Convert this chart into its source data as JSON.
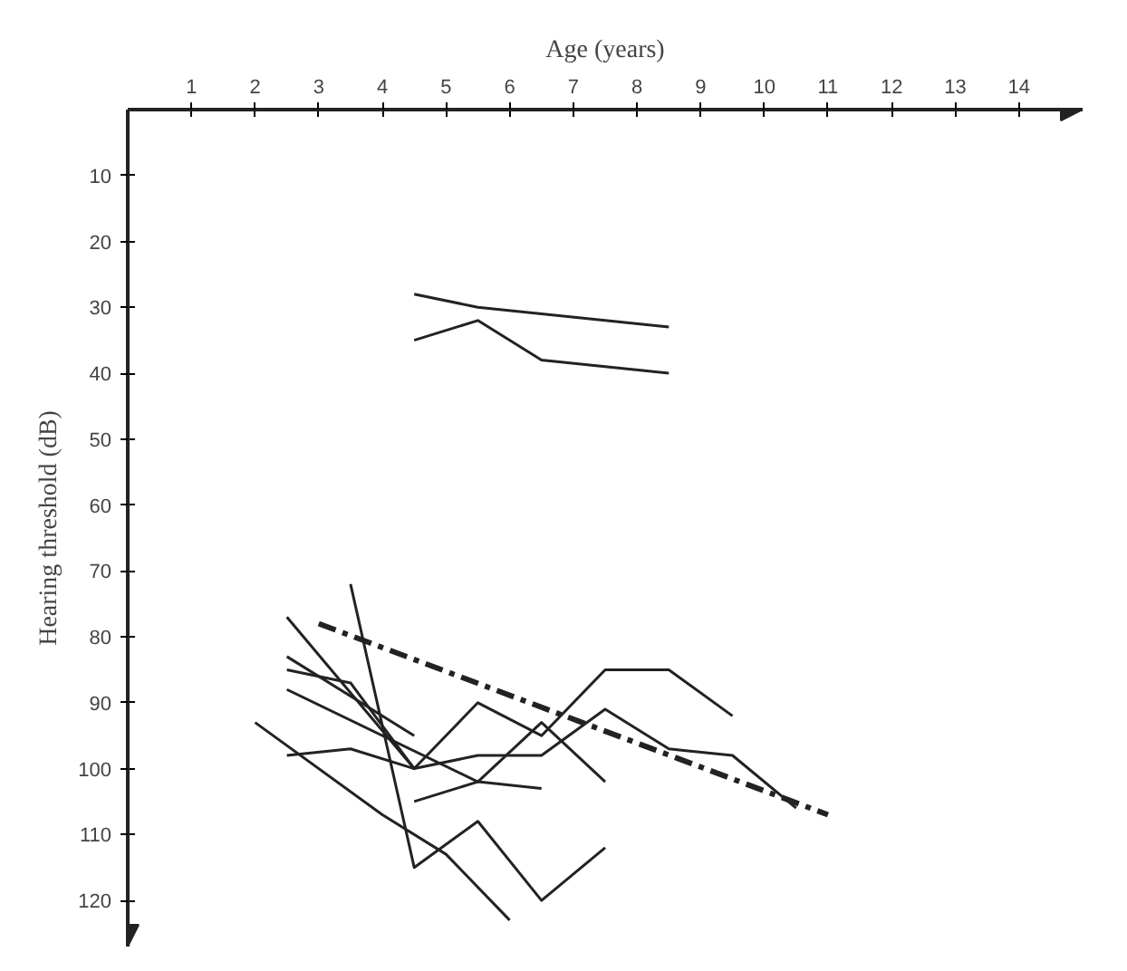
{
  "chart_data": {
    "type": "line",
    "xlabel": "Age (years)",
    "ylabel": "Hearing threshold (dB)",
    "xlim": [
      0,
      15
    ],
    "xticks": [
      1,
      2,
      3,
      4,
      5,
      6,
      7,
      8,
      9,
      10,
      11,
      12,
      13,
      14
    ],
    "ylim": [
      127,
      0
    ],
    "yticks": [
      10,
      20,
      30,
      40,
      50,
      60,
      70,
      80,
      90,
      100,
      110,
      120
    ],
    "marker": "none",
    "series": [
      {
        "color": "#222222",
        "x": [
          4.5,
          5.5,
          8.5
        ],
        "values": [
          28,
          30,
          33
        ]
      },
      {
        "color": "#222222",
        "x": [
          4.5,
          5.5,
          6.5,
          8.5
        ],
        "values": [
          35,
          32,
          38,
          40
        ]
      },
      {
        "color": "#222222",
        "x": [
          3.5,
          4.5,
          5.5,
          6.5,
          7.5
        ],
        "values": [
          72,
          115,
          108,
          120,
          112
        ]
      },
      {
        "color": "#222222",
        "x": [
          2.5,
          4.5,
          5.5,
          6.5,
          7.5,
          8.5,
          9.5
        ],
        "values": [
          77,
          100,
          90,
          95,
          85,
          85,
          92
        ]
      },
      {
        "color": "#222222",
        "x": [
          2.5,
          3.5,
          4.5,
          5.5,
          6.5,
          7.5,
          8.5,
          9.5,
          10.5
        ],
        "values": [
          85,
          87,
          100,
          98,
          98,
          91,
          97,
          98,
          106
        ]
      },
      {
        "color": "#222222",
        "x": [
          2.5,
          4.5
        ],
        "values": [
          83,
          95
        ]
      },
      {
        "color": "#222222",
        "x": [
          2.5,
          5.5,
          6.5,
          7.5
        ],
        "values": [
          88,
          102,
          93,
          102
        ]
      },
      {
        "color": "#222222",
        "x": [
          2.5,
          3.5,
          4.5
        ],
        "values": [
          98,
          97,
          100
        ]
      },
      {
        "color": "#222222",
        "x": [
          2,
          4,
          5,
          6
        ],
        "values": [
          93,
          107,
          113,
          123
        ]
      },
      {
        "color": "#222222",
        "x": [
          4.5,
          5.5,
          6.5
        ],
        "values": [
          105,
          102,
          103
        ]
      },
      {
        "color": "#222222",
        "x": [
          3,
          11
        ],
        "values": [
          78,
          107
        ],
        "line_style": "dashed"
      }
    ]
  }
}
